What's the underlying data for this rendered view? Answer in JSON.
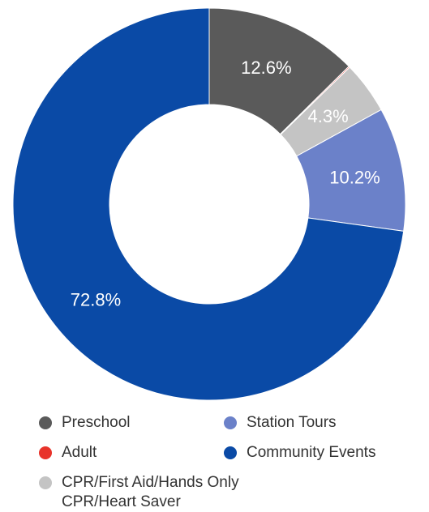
{
  "chart_data": {
    "type": "pie",
    "variant": "donut",
    "categories": [
      "Preschool",
      "Adult",
      "CPR/First Aid/Hands Only\nCPR/Heart Saver",
      "Station Tours",
      "Community Events"
    ],
    "values": [
      12.6,
      0.1,
      4.3,
      10.2,
      72.8
    ],
    "value_labels": [
      "12.6%",
      "",
      "4.3%",
      "10.2%",
      "72.8%"
    ],
    "colors": [
      "#5a5a5a",
      "#e8332a",
      "#c4c4c4",
      "#6b81c9",
      "#0a4aa6"
    ],
    "legend_position": "bottom",
    "legend_order": [
      0,
      3,
      1,
      4,
      2
    ]
  }
}
